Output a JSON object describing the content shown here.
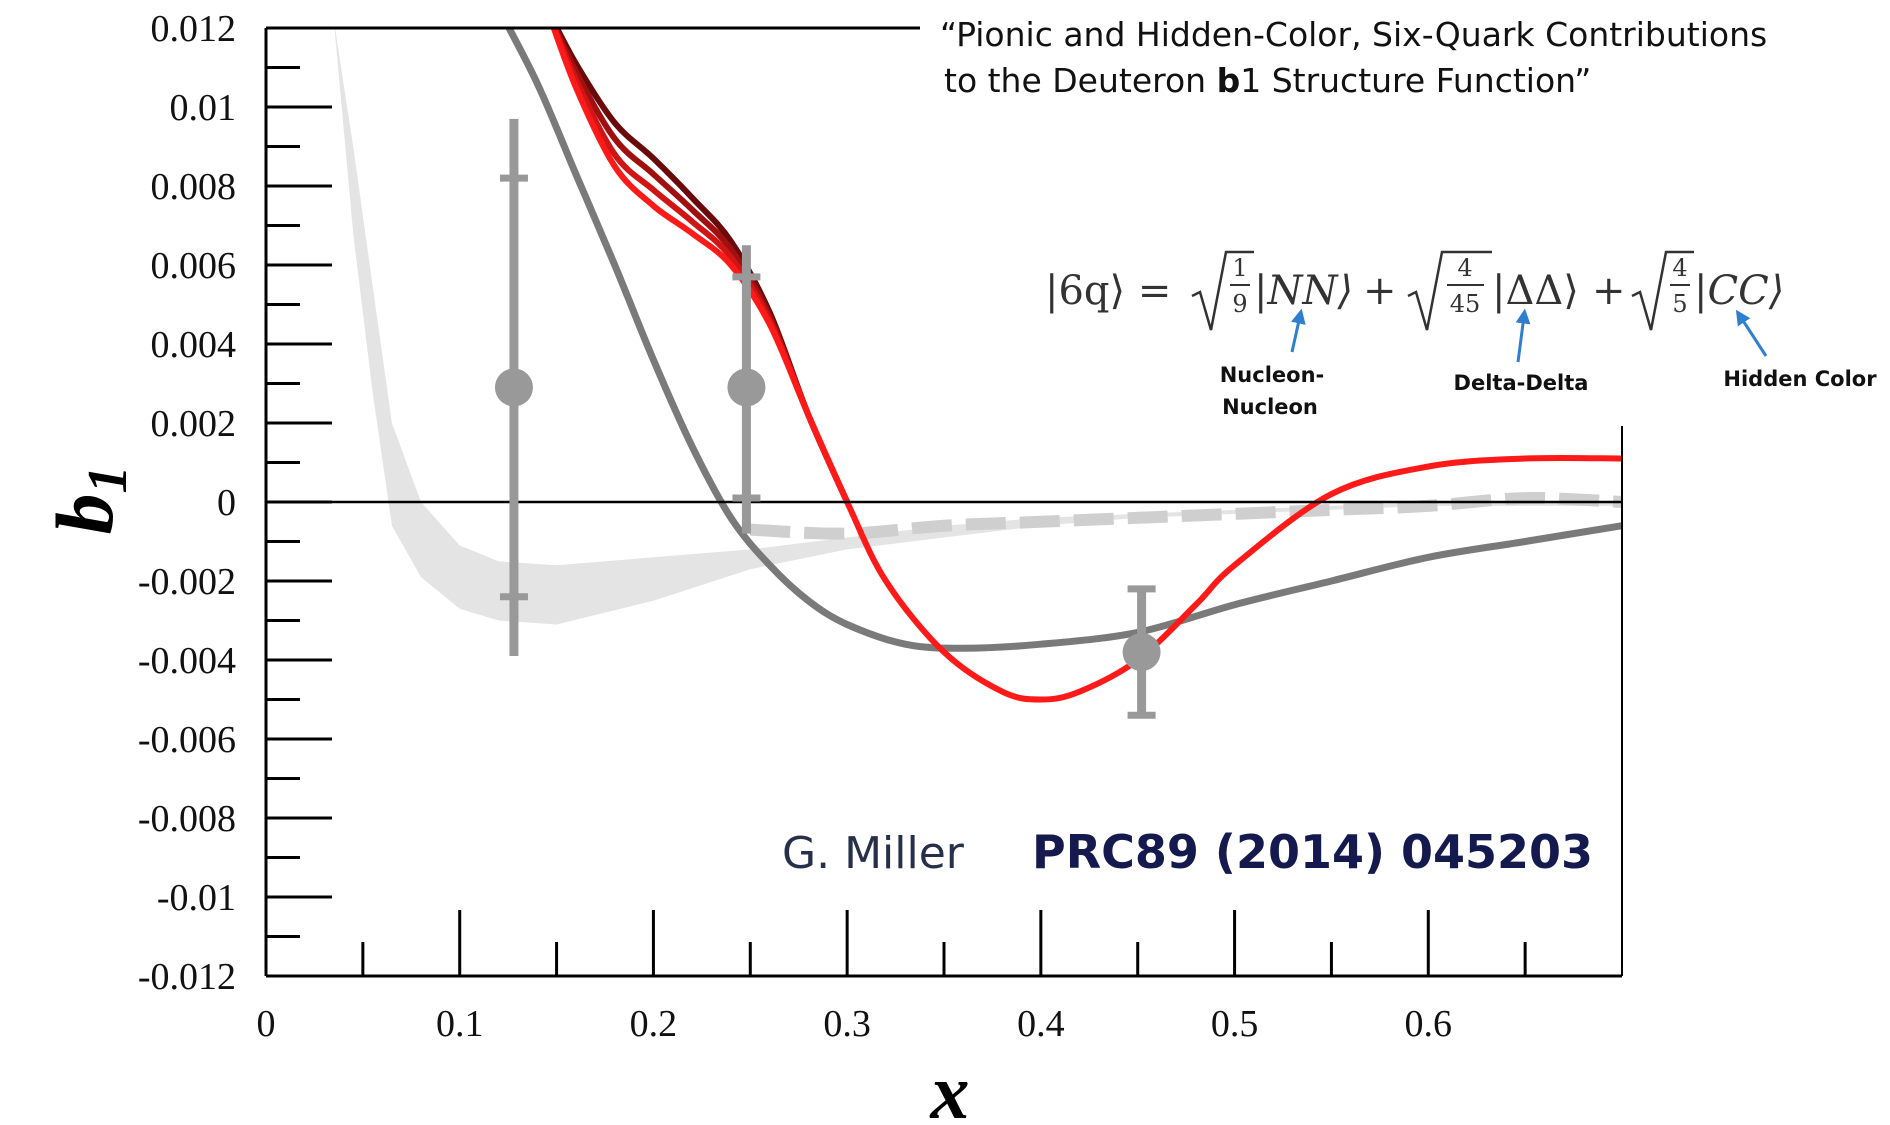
{
  "chart_data": {
    "type": "line",
    "title_line1": "“Pionic and Hidden-Color, Six-Quark Contributions",
    "title_line2_pre": "to the Deuteron ",
    "title_line2_bold": "b",
    "title_line2_post": "1 Structure Function”",
    "xlabel": "x",
    "ylabel": "b",
    "ylabel_sub": "1",
    "xlim": [
      0,
      0.7
    ],
    "ylim": [
      -0.012,
      0.012
    ],
    "x_ticks": [
      "0",
      "0.1",
      "0.2",
      "0.3",
      "0.4",
      "0.5",
      "0.6"
    ],
    "y_ticks": [
      "0.012",
      "0.01",
      "0.008",
      "0.006",
      "0.004",
      "0.002",
      "0",
      "-0.002",
      "-0.004",
      "-0.006",
      "-0.008",
      "-0.01",
      "-0.012"
    ],
    "series": [
      {
        "color": "#ff1a1a",
        "x": [
          0.145,
          0.16,
          0.18,
          0.2,
          0.22,
          0.24,
          0.26,
          0.28,
          0.3,
          0.32,
          0.35,
          0.38,
          0.4,
          0.42,
          0.45,
          0.48,
          0.5,
          0.55,
          0.6,
          0.65,
          0.7
        ],
        "y": [
          0.0125,
          0.0105,
          0.0085,
          0.0075,
          0.0068,
          0.006,
          0.0045,
          0.0022,
          0.0,
          -0.002,
          -0.0038,
          -0.0048,
          -0.005,
          -0.0048,
          -0.004,
          -0.0026,
          -0.0016,
          0.0002,
          0.0009,
          0.0011,
          0.0011
        ]
      },
      {
        "color": "#d01515",
        "x": [
          0.145,
          0.16,
          0.18,
          0.2,
          0.22,
          0.24,
          0.26,
          0.28,
          0.3
        ],
        "y": [
          0.0125,
          0.0107,
          0.0088,
          0.0079,
          0.0071,
          0.0062,
          0.0046,
          0.0022,
          0.0
        ]
      },
      {
        "color": "#a01010",
        "x": [
          0.145,
          0.16,
          0.18,
          0.2,
          0.22,
          0.24,
          0.26,
          0.28,
          0.3
        ],
        "y": [
          0.0125,
          0.0109,
          0.0092,
          0.0083,
          0.0074,
          0.0064,
          0.0047,
          0.0022,
          0.0
        ]
      },
      {
        "color": "#6a0a0a",
        "x": [
          0.145,
          0.16,
          0.18,
          0.2,
          0.22,
          0.24,
          0.26,
          0.28,
          0.3
        ],
        "y": [
          0.0125,
          0.0111,
          0.0096,
          0.0087,
          0.0077,
          0.0066,
          0.0048,
          0.0022,
          0.0
        ]
      },
      {
        "color": "#7a7a7a",
        "x": [
          0.12,
          0.14,
          0.16,
          0.18,
          0.2,
          0.22,
          0.24,
          0.26,
          0.28,
          0.3,
          0.33,
          0.36,
          0.4,
          0.45,
          0.5,
          0.55,
          0.6,
          0.65,
          0.7
        ],
        "y": [
          0.0125,
          0.0106,
          0.0083,
          0.006,
          0.0036,
          0.0014,
          -0.0004,
          -0.0016,
          -0.0025,
          -0.0031,
          -0.0036,
          -0.0037,
          -0.0036,
          -0.0033,
          -0.0026,
          -0.002,
          -0.0014,
          -0.001,
          -0.0006
        ]
      }
    ],
    "band": {
      "color": "#e4e4e4",
      "x": [
        0.035,
        0.045,
        0.055,
        0.065,
        0.08,
        0.1,
        0.12,
        0.15,
        0.2,
        0.25,
        0.3,
        0.35,
        0.4,
        0.45,
        0.5,
        0.55,
        0.6,
        0.65,
        0.7
      ],
      "upper": [
        0.0122,
        0.009,
        0.0055,
        0.002,
        0.0,
        -0.0011,
        -0.0015,
        -0.0016,
        -0.0014,
        -0.0012,
        -0.0009,
        -0.0006,
        -0.0004,
        -0.0003,
        -0.0002,
        -0.0001,
        0.0,
        0.0,
        0.0
      ],
      "lower": [
        0.0122,
        0.0068,
        0.0028,
        -0.0006,
        -0.0019,
        -0.0027,
        -0.003,
        -0.0031,
        -0.0025,
        -0.0017,
        -0.0012,
        -0.0009,
        -0.0006,
        -0.0004,
        -0.0003,
        -0.0002,
        -0.0001,
        -0.0001,
        -0.0001
      ]
    },
    "dashed_series": {
      "color": "#cfcfcf",
      "x": [
        0.25,
        0.3,
        0.35,
        0.4,
        0.45,
        0.5,
        0.55,
        0.6,
        0.65,
        0.7
      ],
      "y": [
        -0.0007,
        -0.0008,
        -0.0006,
        -0.0005,
        -0.0004,
        -0.0003,
        -0.0002,
        -0.0001,
        0.0001,
        0.0
      ]
    },
    "data_points": {
      "color": "#999999",
      "points": [
        {
          "x": 0.128,
          "y": 0.0029,
          "syst_lo": -0.0024,
          "syst_hi": 0.0082,
          "tot_lo": -0.0039,
          "tot_hi": 0.0097
        },
        {
          "x": 0.248,
          "y": 0.0029,
          "syst_lo": 0.0001,
          "syst_hi": 0.0057,
          "tot_lo": -0.0008,
          "tot_hi": 0.0065
        },
        {
          "x": 0.452,
          "y": -0.0038,
          "syst_lo": -0.0054,
          "syst_hi": -0.0022,
          "tot_lo": -0.0054,
          "tot_hi": -0.0022
        }
      ]
    }
  },
  "annotations": {
    "formula": {
      "state": "|6q⟩ =",
      "nn_coef_num": "1",
      "nn_coef_den": "9",
      "nn_ket": "|NN⟩",
      "dd_coef_num": "4",
      "dd_coef_den": "45",
      "dd_ket": "|ΔΔ⟩",
      "cc_coef_num": "4",
      "cc_coef_den": "5",
      "cc_ket": "|CC⟩",
      "plus": "+"
    },
    "labels": {
      "nn_line1": "Nucleon-",
      "nn_line2": "Nucleon",
      "dd": "Delta-Delta",
      "cc": "Hidden Color"
    },
    "arrow_color": "#2f7fd0",
    "author": "G. Miller",
    "citation": "PRC89 (2014) 045203"
  }
}
